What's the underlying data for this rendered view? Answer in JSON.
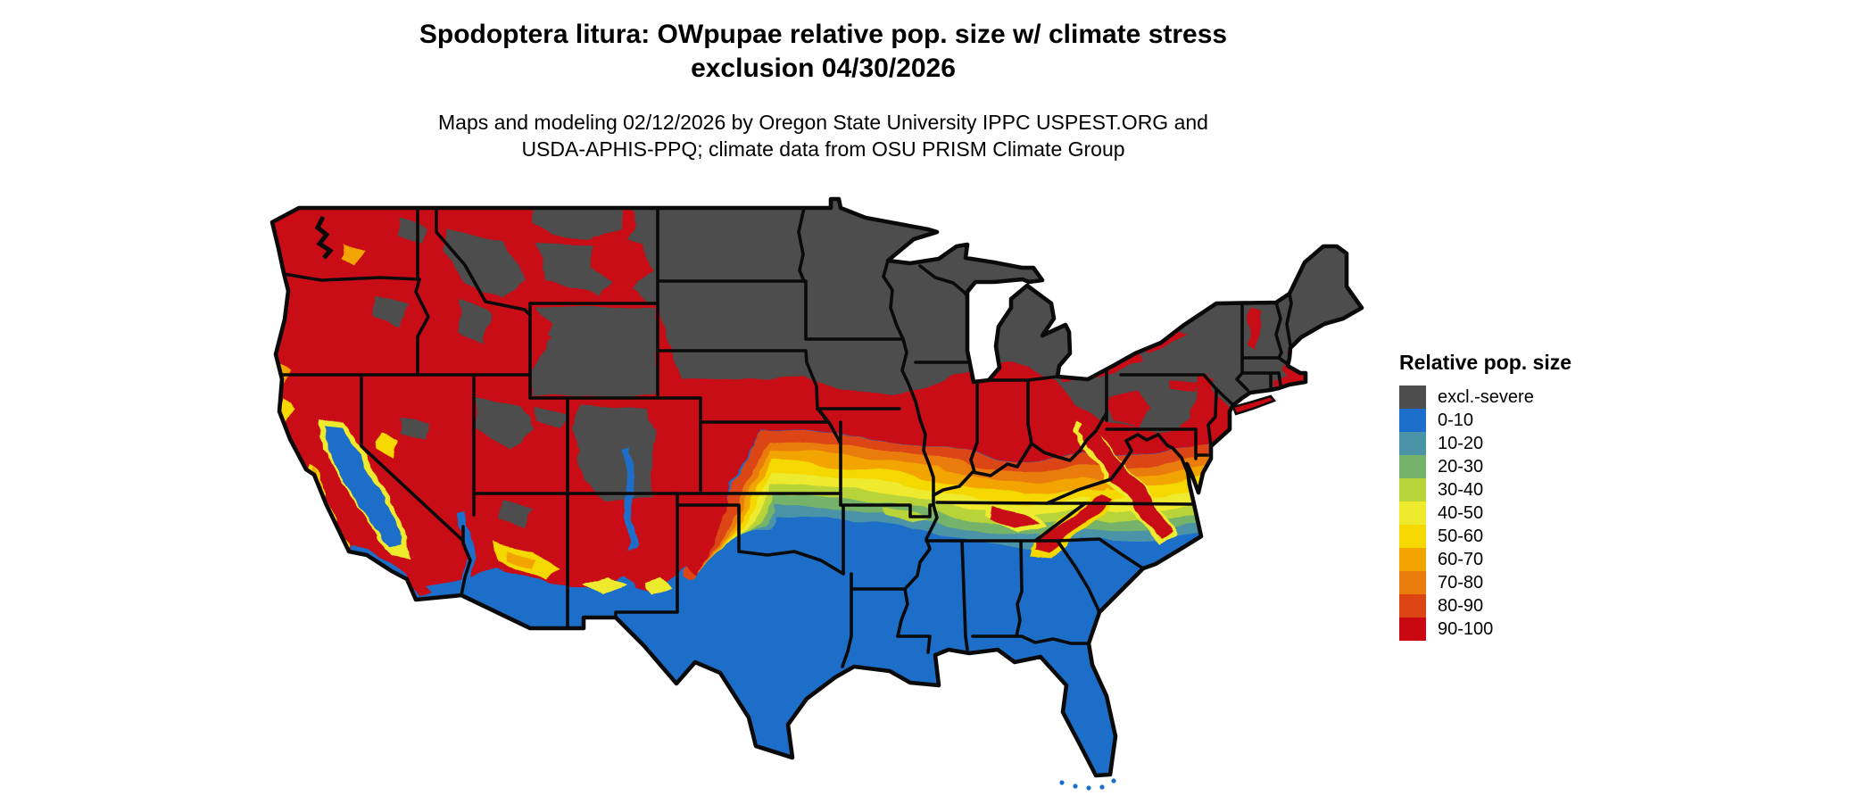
{
  "header": {
    "title_line1": "Spodoptera litura: OWpupae relative pop. size w/ climate stress",
    "title_line2": "exclusion 04/30/2026",
    "subtitle_line1": "Maps and modeling 02/12/2026 by Oregon State University IPPC USPEST.ORG and",
    "subtitle_line2": "USDA-APHIS-PPQ; climate data from OSU PRISM Climate Group"
  },
  "legend": {
    "title": "Relative pop. size",
    "items": [
      {
        "label": "excl.-severe",
        "color": "#4d4d4d"
      },
      {
        "label": "0-10",
        "color": "#1b6ec9"
      },
      {
        "label": "10-20",
        "color": "#4b93a7"
      },
      {
        "label": "20-30",
        "color": "#76b36a"
      },
      {
        "label": "30-40",
        "color": "#b9d438"
      },
      {
        "label": "40-50",
        "color": "#eeea2d"
      },
      {
        "label": "50-60",
        "color": "#f5d800"
      },
      {
        "label": "60-70",
        "color": "#f2a400"
      },
      {
        "label": "70-80",
        "color": "#e97c0d"
      },
      {
        "label": "80-90",
        "color": "#dc4414"
      },
      {
        "label": "90-100",
        "color": "#c90812"
      }
    ]
  },
  "map": {
    "region": "Contiguous United States",
    "palette": {
      "gray": "#4d4d4d",
      "blue": "#1b6ec9",
      "teal": "#4b93a7",
      "green": "#76b36a",
      "ygreen": "#b9d438",
      "yellow": "#eeea2d",
      "gold": "#f5d800",
      "orange": "#f2a400",
      "dorange": "#e97c0d",
      "rorange": "#dc4414",
      "red": "#c90812"
    }
  }
}
